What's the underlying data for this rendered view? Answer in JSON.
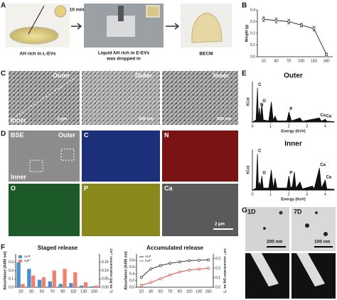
{
  "panel_labels": [
    "A",
    "B",
    "C",
    "D",
    "E",
    "F",
    "G"
  ],
  "panel_a": {
    "captions": [
      [
        "AH rich in L-EVs"
      ],
      [
        "Liquid AH rich in E-EVs",
        "was dropped in"
      ],
      [
        "BECM"
      ]
    ],
    "arrow_label": "10 min"
  },
  "panel_c": {
    "labels": [
      "Outer",
      "Inner",
      "Outer",
      "Inner"
    ],
    "scale_bars": [
      "2 μm",
      "500 nm",
      "500 nm"
    ]
  },
  "panel_d": {
    "labels": [
      "BSE",
      "Outer",
      "Inner",
      "C",
      "N",
      "O",
      "P",
      "Ca"
    ],
    "scale_bar": "2 μm"
  },
  "panel_g": {
    "labels": [
      "1D",
      "7D"
    ],
    "scale_bars": [
      "200 nm",
      "100 nm"
    ]
  },
  "chart_data": [
    {
      "type": "line",
      "ylabel": "Weight (g)",
      "categories": [
        "1D",
        "4D",
        "7D",
        "10D",
        "13D",
        "16D"
      ],
      "values": [
        0.32,
        0.31,
        0.3,
        0.27,
        0.24,
        0.02
      ],
      "errors": [
        0.02,
        0.02,
        0.02,
        0.015,
        0.02,
        0.01
      ],
      "color": "#222222",
      "ylim": [
        0,
        0.4
      ],
      "yticks": [
        {
          "value": 0,
          "label": "0.0"
        },
        0.1,
        0.2,
        0.3,
        0.4
      ]
    },
    {
      "type": "line",
      "title": "Outer",
      "xlabel": "Energy (KeV)",
      "ylabel": "KCnt",
      "x": [
        0,
        0.2,
        0.28,
        0.33,
        0.39,
        0.44,
        0.52,
        0.6,
        0.9,
        1.04,
        1.15,
        1.25,
        1.35,
        1.9,
        2.01,
        2.15,
        2.62,
        2.75,
        3.69,
        3.8,
        4.01,
        4.1,
        4.5
      ],
      "values": [
        0,
        0.05,
        0.85,
        0.1,
        0.35,
        0.08,
        0.45,
        0.05,
        0.03,
        0.5,
        0.04,
        0.15,
        0.03,
        0.03,
        0.25,
        0.03,
        0.1,
        0.02,
        0.1,
        0.02,
        0.07,
        0.02,
        0.01
      ],
      "color": "#111111",
      "fill": true,
      "xlim": [
        0,
        4.5
      ],
      "xticks": [
        0,
        1,
        2,
        3,
        4
      ],
      "ylim": [
        0,
        1
      ],
      "annotations": [
        {
          "text": "C",
          "x": 0.28
        },
        {
          "text": "N",
          "x": 0.39
        },
        {
          "text": "O",
          "x": 0.52
        },
        {
          "text": "P",
          "x": 2.01
        },
        {
          "text": "Ca",
          "x": 3.69
        },
        {
          "text": "Ca",
          "x": 4.01
        }
      ]
    },
    {
      "type": "line",
      "title": "Inner",
      "xlabel": "Energy (KeV)",
      "ylabel": "KCnt",
      "x": [
        0,
        0.2,
        0.28,
        0.33,
        0.39,
        0.44,
        0.52,
        0.6,
        0.9,
        1.04,
        1.15,
        1.25,
        1.35,
        1.9,
        2.01,
        2.1,
        2.2,
        2.31,
        2.4,
        2.62,
        2.75,
        3.3,
        3.4,
        3.69,
        3.8,
        4.01,
        4.1,
        4.5
      ],
      "values": [
        0,
        0.05,
        0.9,
        0.1,
        0.2,
        0.08,
        0.35,
        0.05,
        0.05,
        0.5,
        0.05,
        0.3,
        0.05,
        0.05,
        0.35,
        0.05,
        0.1,
        0.45,
        0.05,
        0.2,
        0.03,
        0.1,
        0.03,
        0.55,
        0.05,
        0.25,
        0.03,
        0.02
      ],
      "color": "#111111",
      "fill": true,
      "xlim": [
        0,
        4.5
      ],
      "xticks": [
        0,
        1,
        2,
        3,
        4
      ],
      "ylim": [
        0,
        1
      ],
      "annotations": [
        {
          "text": "C",
          "x": 0.28
        },
        {
          "text": "O",
          "x": 0.52
        },
        {
          "text": "P",
          "x": 2.01
        },
        {
          "text": "Ca",
          "x": 3.69
        },
        {
          "text": "Ca",
          "x": 4.01
        }
      ]
    },
    {
      "type": "bar",
      "title": "Staged release",
      "ylabel": "Absorbance (A405 nm)",
      "y2label": "Ca²⁺ concentration (μg mL⁻¹)",
      "categories": [
        "1D",
        "3D",
        "5D",
        "7D",
        "9D",
        "11D",
        "13D",
        "15D"
      ],
      "series": [
        {
          "name": "ALP",
          "color": "#4a90c8",
          "values": [
            0.3,
            0.22,
            0.09,
            0.07,
            0.04,
            0.05,
            0.02,
            0.01
          ]
        },
        {
          "name": "Ca²⁺",
          "color": "#f08070",
          "axis": "y2",
          "values": [
            0.02,
            0.07,
            0.06,
            0.1,
            0.11,
            0.09,
            0.03,
            0.01
          ]
        }
      ],
      "ylim": [
        0,
        0.4
      ],
      "yticks": [
        {
          "value": 0,
          "label": "0.0"
        },
        0.1,
        0.2,
        0.3
      ],
      "y2lim": [
        0,
        0.2
      ],
      "y2ticks": [
        {
          "value": 0,
          "label": "0.00"
        },
        0.05,
        {
          "value": 0.1,
          "label": "0.10"
        },
        0.15
      ],
      "legend": "upper-left"
    },
    {
      "type": "line",
      "title": "Accumulated release",
      "ylabel": "Absorbance (A405 nm)",
      "y2label": "Ca²⁺ concentration (μg mL⁻¹)",
      "categories": [
        "1D",
        "3D",
        "5D",
        "7D",
        "9D",
        "11D",
        "13D",
        "15D"
      ],
      "series": [
        {
          "name": "ALP",
          "color": "#222222",
          "values": [
            0.3,
            0.55,
            0.65,
            0.72,
            0.76,
            0.8,
            0.81,
            0.82
          ]
        },
        {
          "name": "Ca²⁺",
          "color": "#e03a2a",
          "axis": "y2",
          "values": [
            0.02,
            0.05,
            0.09,
            0.13,
            0.16,
            0.18,
            0.19,
            0.2
          ]
        }
      ],
      "ylim": [
        0,
        1
      ],
      "yticks": [
        {
          "value": 0,
          "label": "0.0"
        },
        {
          "value": 0.2,
          "label": "0.2"
        },
        {
          "value": 0.4,
          "label": "0.4"
        },
        {
          "value": 0.6,
          "label": "0.6"
        },
        {
          "value": 0.8,
          "label": "0.8"
        }
      ],
      "y2lim": [
        0,
        0.35
      ],
      "y2ticks": [
        {
          "value": 0,
          "label": "0.0"
        },
        0.1,
        0.2,
        0.3
      ],
      "legend": "upper-left"
    }
  ]
}
